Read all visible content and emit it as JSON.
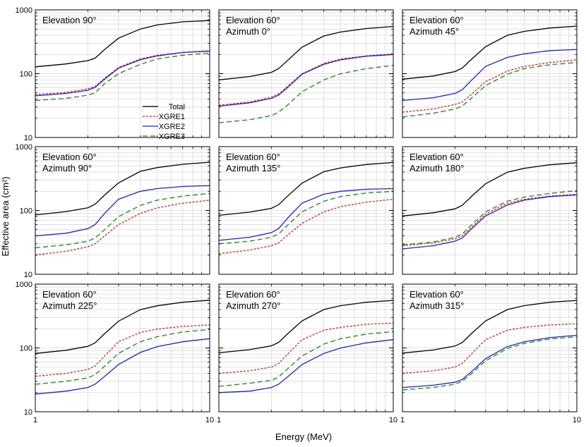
{
  "figure": {
    "ylabel": "Effective area (cm²)",
    "xlabel": "Energy (MeV)"
  },
  "legend": {
    "entries": [
      {
        "label": "Total",
        "color": "#000000",
        "dash": "solid"
      },
      {
        "label": "XGRE1",
        "color": "#e8211d",
        "dash": "dot"
      },
      {
        "label": "XGRE2",
        "color": "#1f1fe6",
        "dash": "solid"
      },
      {
        "label": "XGRE3",
        "color": "#1a8a1a",
        "dash": "dash"
      }
    ]
  },
  "chart_data": [
    {
      "type": "line",
      "title_lines": [
        "Elevation 90°"
      ],
      "xscale": "log",
      "yscale": "log",
      "xlim": [
        1,
        10
      ],
      "ylim": [
        10,
        1000
      ],
      "grid": true,
      "x": [
        1,
        1.5,
        2,
        2.2,
        2.5,
        3,
        4,
        5,
        7,
        10
      ],
      "series": [
        {
          "name": "Total",
          "values": [
            128,
            142,
            160,
            175,
            240,
            360,
            500,
            580,
            650,
            680
          ]
        },
        {
          "name": "XGRE1",
          "values": [
            47,
            51,
            58,
            63,
            85,
            125,
            170,
            195,
            215,
            230
          ]
        },
        {
          "name": "XGRE2",
          "values": [
            45,
            49,
            55,
            61,
            82,
            122,
            165,
            190,
            215,
            225
          ]
        },
        {
          "name": "XGRE3",
          "values": [
            38,
            41,
            46,
            50,
            70,
            100,
            140,
            170,
            195,
            210
          ]
        }
      ]
    },
    {
      "type": "line",
      "title_lines": [
        "Elevation 60°",
        "Azimuth 0°"
      ],
      "xscale": "log",
      "yscale": "log",
      "xlim": [
        1,
        10
      ],
      "ylim": [
        10,
        1000
      ],
      "grid": true,
      "x": [
        1,
        1.5,
        2,
        2.2,
        2.5,
        3,
        4,
        5,
        7,
        10
      ],
      "series": [
        {
          "name": "Total",
          "values": [
            80,
            90,
            105,
            120,
            165,
            260,
            390,
            450,
            510,
            550
          ]
        },
        {
          "name": "XGRE1",
          "values": [
            32,
            36,
            43,
            48,
            65,
            100,
            145,
            170,
            190,
            205
          ]
        },
        {
          "name": "XGRE2",
          "values": [
            31,
            35,
            41,
            46,
            62,
            98,
            140,
            165,
            188,
            200
          ]
        },
        {
          "name": "XGRE3",
          "values": [
            17,
            19,
            22,
            25,
            33,
            52,
            80,
            100,
            120,
            135
          ]
        }
      ]
    },
    {
      "type": "line",
      "title_lines": [
        "Elevation 60°",
        "Azimuth 45°"
      ],
      "xscale": "log",
      "yscale": "log",
      "xlim": [
        1,
        10
      ],
      "ylim": [
        10,
        1000
      ],
      "grid": true,
      "x": [
        1,
        1.5,
        2,
        2.2,
        2.5,
        3,
        4,
        5,
        7,
        10
      ],
      "series": [
        {
          "name": "Total",
          "values": [
            82,
            92,
            108,
            122,
            170,
            265,
            400,
            460,
            520,
            555
          ]
        },
        {
          "name": "XGRE1",
          "values": [
            25,
            28,
            33,
            36,
            48,
            75,
            110,
            130,
            150,
            165
          ]
        },
        {
          "name": "XGRE2",
          "values": [
            38,
            42,
            49,
            56,
            80,
            130,
            180,
            205,
            230,
            240
          ]
        },
        {
          "name": "XGRE3",
          "values": [
            21,
            24,
            28,
            31,
            42,
            65,
            98,
            120,
            138,
            150
          ]
        }
      ]
    },
    {
      "type": "line",
      "title_lines": [
        "Elevation 60°",
        "Azimuth 90°"
      ],
      "xscale": "log",
      "yscale": "log",
      "xlim": [
        1,
        10
      ],
      "ylim": [
        10,
        1000
      ],
      "grid": true,
      "x": [
        1,
        1.5,
        2,
        2.2,
        2.5,
        3,
        4,
        5,
        7,
        10
      ],
      "series": [
        {
          "name": "Total",
          "values": [
            85,
            96,
            110,
            125,
            175,
            270,
            410,
            470,
            530,
            570
          ]
        },
        {
          "name": "XGRE1",
          "values": [
            20,
            23,
            27,
            30,
            40,
            60,
            90,
            110,
            130,
            145
          ]
        },
        {
          "name": "XGRE2",
          "values": [
            40,
            44,
            52,
            60,
            90,
            150,
            200,
            220,
            238,
            245
          ]
        },
        {
          "name": "XGRE3",
          "values": [
            26,
            29,
            33,
            37,
            50,
            80,
            120,
            145,
            168,
            185
          ]
        }
      ]
    },
    {
      "type": "line",
      "title_lines": [
        "Elevation 60°",
        "Azimuth 135°"
      ],
      "xscale": "log",
      "yscale": "log",
      "xlim": [
        1,
        10
      ],
      "ylim": [
        10,
        1000
      ],
      "grid": true,
      "x": [
        1,
        1.5,
        2,
        2.2,
        2.5,
        3,
        4,
        5,
        7,
        10
      ],
      "series": [
        {
          "name": "Total",
          "values": [
            84,
            94,
            108,
            123,
            172,
            268,
            405,
            465,
            525,
            565
          ]
        },
        {
          "name": "XGRE1",
          "values": [
            21,
            24,
            28,
            31,
            42,
            63,
            95,
            115,
            135,
            150
          ]
        },
        {
          "name": "XGRE2",
          "values": [
            34,
            38,
            45,
            52,
            78,
            130,
            180,
            200,
            215,
            220
          ]
        },
        {
          "name": "XGRE3",
          "values": [
            30,
            33,
            38,
            43,
            60,
            95,
            140,
            165,
            188,
            200
          ]
        }
      ]
    },
    {
      "type": "line",
      "title_lines": [
        "Elevation 60°",
        "Azimuth 180°"
      ],
      "xscale": "log",
      "yscale": "log",
      "xlim": [
        1,
        10
      ],
      "ylim": [
        10,
        1000
      ],
      "grid": true,
      "x": [
        1,
        1.5,
        2,
        2.2,
        2.5,
        3,
        4,
        5,
        7,
        10
      ],
      "series": [
        {
          "name": "Total",
          "values": [
            82,
            92,
            106,
            120,
            168,
            262,
            398,
            458,
            520,
            560
          ]
        },
        {
          "name": "XGRE1",
          "values": [
            28,
            31,
            36,
            40,
            55,
            88,
            130,
            150,
            168,
            180
          ]
        },
        {
          "name": "XGRE2",
          "values": [
            25,
            28,
            33,
            37,
            52,
            82,
            122,
            145,
            165,
            175
          ]
        },
        {
          "name": "XGRE3",
          "values": [
            29,
            32,
            38,
            43,
            60,
            95,
            140,
            162,
            185,
            205
          ]
        }
      ]
    },
    {
      "type": "line",
      "title_lines": [
        "Elevation 60°",
        "Azimuth 225°"
      ],
      "xscale": "log",
      "yscale": "log",
      "xlim": [
        1,
        10
      ],
      "ylim": [
        10,
        1000
      ],
      "grid": true,
      "x": [
        1,
        1.5,
        2,
        2.2,
        2.5,
        3,
        4,
        5,
        7,
        10
      ],
      "series": [
        {
          "name": "Total",
          "values": [
            82,
            92,
            106,
            120,
            168,
            262,
            398,
            458,
            520,
            560
          ]
        },
        {
          "name": "XGRE1",
          "values": [
            36,
            40,
            46,
            52,
            75,
            125,
            175,
            198,
            218,
            230
          ]
        },
        {
          "name": "XGRE2",
          "values": [
            19,
            21,
            24,
            27,
            36,
            55,
            85,
            105,
            125,
            140
          ]
        },
        {
          "name": "XGRE3",
          "values": [
            27,
            30,
            34,
            38,
            52,
            82,
            125,
            150,
            178,
            195
          ]
        }
      ]
    },
    {
      "type": "line",
      "title_lines": [
        "Elevation 60°",
        "Azimuth 270°"
      ],
      "xscale": "log",
      "yscale": "log",
      "xlim": [
        1,
        10
      ],
      "ylim": [
        10,
        1000
      ],
      "grid": true,
      "x": [
        1,
        1.5,
        2,
        2.2,
        2.5,
        3,
        4,
        5,
        7,
        10
      ],
      "series": [
        {
          "name": "Total",
          "values": [
            84,
            94,
            108,
            122,
            170,
            265,
            400,
            460,
            520,
            555
          ]
        },
        {
          "name": "XGRE1",
          "values": [
            40,
            44,
            50,
            57,
            82,
            135,
            190,
            210,
            235,
            245
          ]
        },
        {
          "name": "XGRE2",
          "values": [
            20,
            21,
            24,
            27,
            36,
            55,
            82,
            100,
            120,
            135
          ]
        },
        {
          "name": "XGRE3",
          "values": [
            25,
            28,
            31,
            35,
            48,
            75,
            115,
            140,
            165,
            180
          ]
        }
      ]
    },
    {
      "type": "line",
      "title_lines": [
        "Elevation 60°",
        "Azimuth 315°"
      ],
      "xscale": "log",
      "yscale": "log",
      "xlim": [
        1,
        10
      ],
      "ylim": [
        10,
        1000
      ],
      "grid": true,
      "x": [
        1,
        1.5,
        2,
        2.2,
        2.5,
        3,
        4,
        5,
        7,
        10
      ],
      "series": [
        {
          "name": "Total",
          "values": [
            83,
            93,
            107,
            121,
            170,
            265,
            400,
            460,
            520,
            555
          ]
        },
        {
          "name": "XGRE1",
          "values": [
            40,
            44,
            50,
            57,
            82,
            135,
            190,
            210,
            230,
            240
          ]
        },
        {
          "name": "XGRE2",
          "values": [
            24,
            26,
            29,
            32,
            43,
            68,
            105,
            125,
            145,
            158
          ]
        },
        {
          "name": "XGRE3",
          "values": [
            22,
            24,
            27,
            30,
            40,
            63,
            98,
            118,
            138,
            150
          ]
        }
      ]
    }
  ]
}
